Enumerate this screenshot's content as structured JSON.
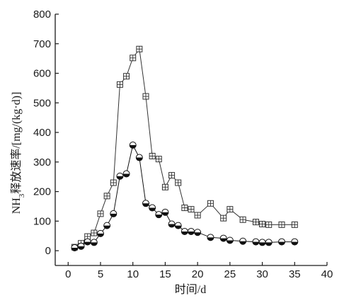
{
  "chart_data": {
    "type": "line",
    "title": "",
    "xlabel": "时间/d",
    "ylabel": "NH3释放速率/[mg/(kg·d)]",
    "ylabel_parts": {
      "prefix": "NH",
      "subscript": "3",
      "suffix": "释放速率/[mg/(kg·d)]"
    },
    "xlim": [
      -2,
      40
    ],
    "ylim": [
      -50,
      800
    ],
    "xticks": [
      0,
      5,
      10,
      15,
      20,
      25,
      30,
      35,
      40
    ],
    "yticks": [
      0,
      100,
      200,
      300,
      400,
      500,
      600,
      700,
      800
    ],
    "grid": false,
    "legend": "none",
    "series": [
      {
        "marker": "square-cross",
        "color": "#333333",
        "points": [
          [
            1,
            12
          ],
          [
            2,
            25
          ],
          [
            3,
            48
          ],
          [
            4,
            60
          ],
          [
            5,
            125
          ],
          [
            6,
            185
          ],
          [
            7,
            230
          ],
          [
            8,
            562
          ],
          [
            9,
            590
          ],
          [
            10,
            652
          ],
          [
            11,
            682
          ],
          [
            12,
            522
          ],
          [
            13,
            320
          ],
          [
            14,
            310
          ],
          [
            15,
            215
          ],
          [
            16,
            255
          ],
          [
            17,
            230
          ],
          [
            18,
            145
          ],
          [
            19,
            140
          ],
          [
            20,
            120
          ],
          [
            22,
            160
          ],
          [
            24,
            110
          ],
          [
            25,
            140
          ],
          [
            27,
            105
          ],
          [
            29,
            97
          ],
          [
            30,
            90
          ],
          [
            31,
            88
          ],
          [
            33,
            88
          ],
          [
            35,
            88
          ]
        ]
      },
      {
        "marker": "half-filled-circle",
        "color": "#111111",
        "points": [
          [
            1,
            10
          ],
          [
            2,
            15
          ],
          [
            3,
            30
          ],
          [
            4,
            28
          ],
          [
            5,
            58
          ],
          [
            6,
            85
          ],
          [
            7,
            125
          ],
          [
            8,
            252
          ],
          [
            9,
            260
          ],
          [
            10,
            357
          ],
          [
            11,
            315
          ],
          [
            12,
            160
          ],
          [
            13,
            145
          ],
          [
            14,
            122
          ],
          [
            15,
            130
          ],
          [
            16,
            90
          ],
          [
            17,
            85
          ],
          [
            18,
            65
          ],
          [
            19,
            65
          ],
          [
            20,
            62
          ],
          [
            22,
            45
          ],
          [
            24,
            42
          ],
          [
            25,
            35
          ],
          [
            27,
            32
          ],
          [
            29,
            30
          ],
          [
            30,
            28
          ],
          [
            31,
            28
          ],
          [
            33,
            30
          ],
          [
            35,
            30
          ]
        ]
      }
    ]
  }
}
